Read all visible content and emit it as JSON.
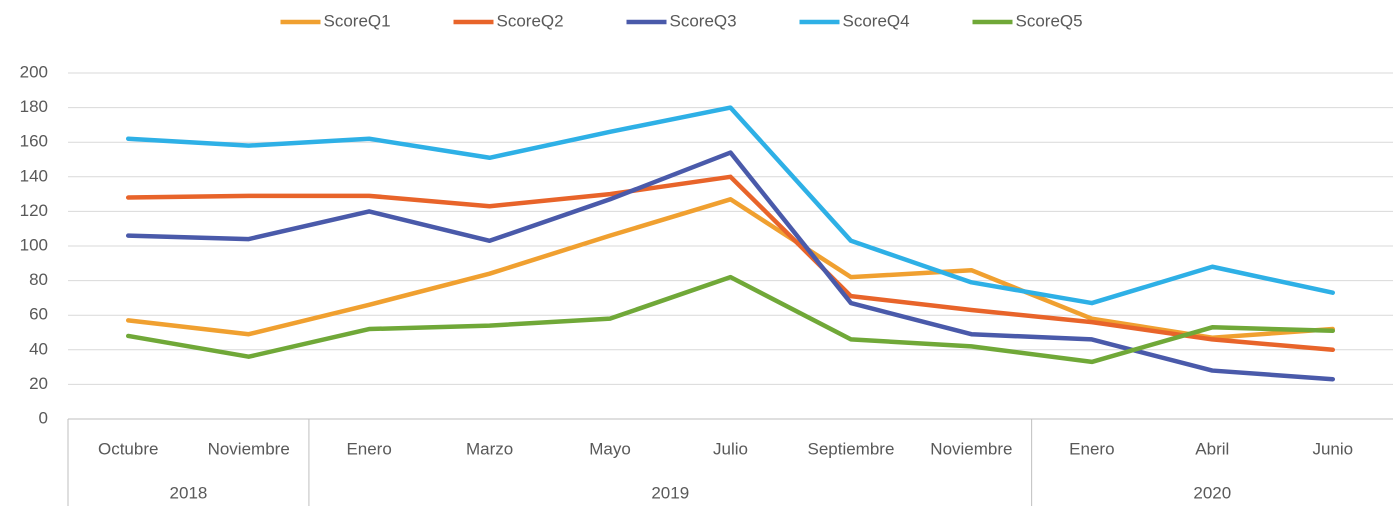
{
  "chart_data": {
    "type": "line",
    "groups": [
      {
        "label": "2018",
        "categories": [
          "Octubre",
          "Noviembre"
        ]
      },
      {
        "label": "2019",
        "categories": [
          "Enero",
          "Marzo",
          "Mayo",
          "Julio",
          "Septiembre",
          "Noviembre"
        ]
      },
      {
        "label": "2020",
        "categories": [
          "Enero",
          "Abril",
          "Junio"
        ]
      }
    ],
    "series": [
      {
        "name": "ScoreQ1",
        "color": "#f0a030",
        "values": [
          57,
          49,
          66,
          84,
          106,
          127,
          82,
          86,
          58,
          47,
          52
        ]
      },
      {
        "name": "ScoreQ2",
        "color": "#e8642a",
        "values": [
          128,
          129,
          129,
          123,
          130,
          140,
          71,
          63,
          56,
          46,
          40
        ]
      },
      {
        "name": "ScoreQ3",
        "color": "#4a5aaa",
        "values": [
          106,
          104,
          120,
          103,
          127,
          154,
          67,
          49,
          46,
          28,
          23
        ]
      },
      {
        "name": "ScoreQ4",
        "color": "#2eb0e6",
        "values": [
          162,
          158,
          162,
          151,
          166,
          180,
          103,
          79,
          67,
          88,
          73
        ]
      },
      {
        "name": "ScoreQ5",
        "color": "#70a838",
        "values": [
          48,
          36,
          52,
          54,
          58,
          82,
          46,
          42,
          33,
          53,
          51
        ]
      }
    ],
    "ylim": [
      0,
      200
    ],
    "yticks": [
      0,
      20,
      40,
      60,
      80,
      100,
      120,
      140,
      160,
      180,
      200
    ],
    "grid": true,
    "legend": "top"
  }
}
